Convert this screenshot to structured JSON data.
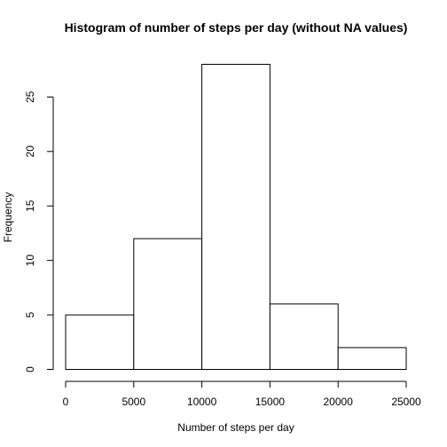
{
  "chart_data": {
    "type": "bar",
    "title": "Histogram of number of steps per day (without NA values)",
    "xlabel": "Number of steps per day",
    "ylabel": "Frequency",
    "bins": [
      {
        "from": 0,
        "to": 5000,
        "count": 5
      },
      {
        "from": 5000,
        "to": 10000,
        "count": 12
      },
      {
        "from": 10000,
        "to": 15000,
        "count": 28
      },
      {
        "from": 15000,
        "to": 20000,
        "count": 6
      },
      {
        "from": 20000,
        "to": 25000,
        "count": 2
      }
    ],
    "x_ticks": [
      0,
      5000,
      10000,
      15000,
      20000,
      25000
    ],
    "y_ticks": [
      0,
      5,
      10,
      15,
      20,
      25
    ],
    "xlim": [
      0,
      25000
    ],
    "ylim": [
      0,
      28
    ],
    "grid": false,
    "bar_fill": "#ffffff",
    "bar_stroke": "#000000"
  }
}
